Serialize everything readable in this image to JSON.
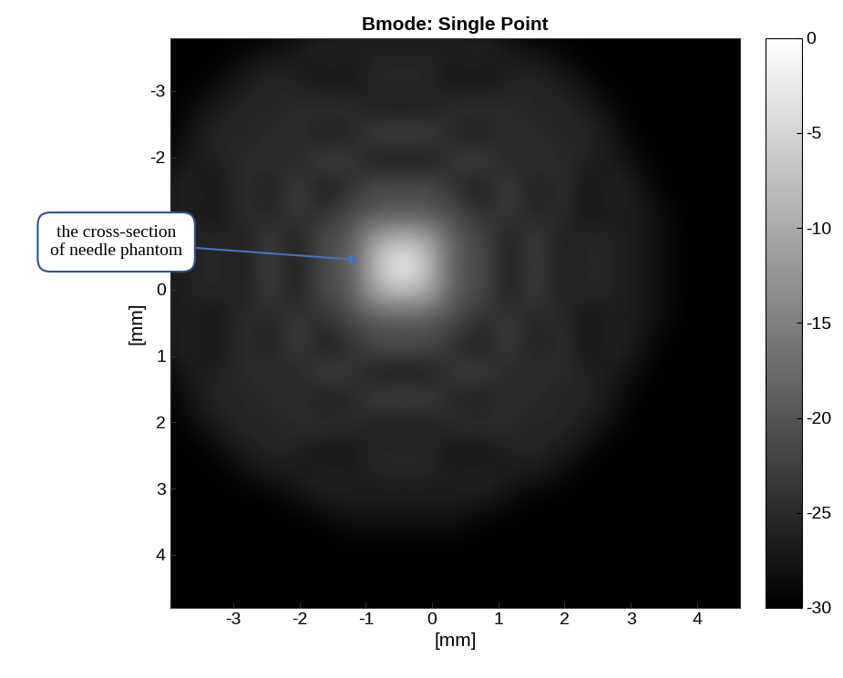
{
  "chart_data": {
    "type": "heatmap",
    "title": "Bmode: Single Point",
    "x_label": "[mm]",
    "y_label": "[mm]",
    "annotation": "the cross-section\nof needle phantom",
    "color": "gray",
    "xlim": [
      -3.95,
      4.65
    ],
    "ylim": [
      4.8,
      -3.8
    ],
    "xticks": [
      -3,
      -2,
      -1,
      0,
      1,
      2,
      3,
      4
    ],
    "yticks": [
      -3,
      -2,
      0,
      1,
      2,
      3,
      4
    ],
    "cells_x_range": [
      -4.25,
      4.95
    ],
    "cells_y_range": [
      -4.15,
      5.05
    ],
    "color_range": [
      -30,
      0
    ],
    "color_ticks": [
      0,
      -5,
      -10,
      -15,
      -20,
      -25,
      -30
    ],
    "cells": [
      [
        -30,
        -30,
        -30,
        -30,
        -30,
        -29,
        -28,
        -27,
        -27,
        -27,
        -27,
        -27,
        -28,
        -29,
        -30,
        -30,
        -30,
        -30,
        -30,
        -30,
        -30,
        -30,
        -30
      ],
      [
        -30,
        -30,
        -30,
        -29,
        -28,
        -27,
        -25,
        -26,
        -26,
        -26,
        -26,
        -26,
        -25,
        -27,
        -28,
        -29,
        -30,
        -30,
        -30,
        -30,
        -30,
        -30,
        -30
      ],
      [
        -30,
        -30,
        -29,
        -27,
        -25,
        -26,
        -28,
        -28,
        -25,
        -25,
        -25,
        -28,
        -28,
        -26,
        -25,
        -27,
        -29,
        -30,
        -30,
        -30,
        -30,
        -30,
        -30
      ],
      [
        -30,
        -29,
        -27,
        -25,
        -26,
        -25,
        -24,
        -24,
        -27,
        -27,
        -27,
        -24,
        -24,
        -25,
        -26,
        -25,
        -27,
        -29,
        -30,
        -30,
        -30,
        -30,
        -30
      ],
      [
        -30,
        -28,
        -25,
        -26,
        -25,
        -24,
        -27,
        -26,
        -22,
        -22,
        -22,
        -26,
        -27,
        -24,
        -25,
        -26,
        -25,
        -28,
        -30,
        -30,
        -30,
        -30,
        -30
      ],
      [
        -29,
        -27,
        -26,
        -25,
        -24,
        -26,
        -22,
        -23,
        -27,
        -27,
        -27,
        -23,
        -22,
        -26,
        -24,
        -25,
        -26,
        -27,
        -29,
        -30,
        -30,
        -30,
        -30
      ],
      [
        -28,
        -25,
        -28,
        -24,
        -27,
        -22,
        -27,
        -25,
        -21,
        -21,
        -21,
        -25,
        -27,
        -22,
        -27,
        -24,
        -28,
        -25,
        -28,
        -30,
        -30,
        -30,
        -30
      ],
      [
        -27,
        -26,
        -28,
        -24,
        -26,
        -23,
        -25,
        -21,
        -20,
        -20,
        -20,
        -21,
        -25,
        -23,
        -26,
        -24,
        -28,
        -26,
        -27,
        -29,
        -30,
        -30,
        -30
      ],
      [
        -27,
        -26,
        -25,
        -27,
        -22,
        -27,
        -21,
        -20,
        -10,
        -8,
        -10,
        -20,
        -21,
        -27,
        -22,
        -27,
        -25,
        -26,
        -27,
        -29,
        -30,
        -30,
        -30
      ],
      [
        -27,
        -26,
        -25,
        -27,
        -22,
        -27,
        -21,
        -20,
        -8,
        0,
        -8,
        -20,
        -21,
        -27,
        -22,
        -27,
        -25,
        -26,
        -27,
        -29,
        -30,
        -30,
        -30
      ],
      [
        -27,
        -26,
        -25,
        -27,
        -22,
        -27,
        -21,
        -20,
        -10,
        -8,
        -10,
        -20,
        -21,
        -27,
        -22,
        -27,
        -25,
        -26,
        -27,
        -29,
        -30,
        -30,
        -30
      ],
      [
        -27,
        -26,
        -28,
        -24,
        -26,
        -23,
        -25,
        -21,
        -20,
        -20,
        -20,
        -21,
        -25,
        -23,
        -26,
        -24,
        -28,
        -26,
        -27,
        -29,
        -30,
        -30,
        -30
      ],
      [
        -28,
        -25,
        -28,
        -24,
        -27,
        -22,
        -27,
        -25,
        -21,
        -21,
        -21,
        -25,
        -27,
        -22,
        -27,
        -24,
        -28,
        -25,
        -28,
        -30,
        -30,
        -30,
        -30
      ],
      [
        -29,
        -27,
        -26,
        -25,
        -24,
        -26,
        -22,
        -23,
        -27,
        -27,
        -27,
        -23,
        -22,
        -26,
        -24,
        -25,
        -26,
        -27,
        -29,
        -30,
        -30,
        -30,
        -30
      ],
      [
        -30,
        -28,
        -25,
        -26,
        -25,
        -24,
        -27,
        -26,
        -22,
        -22,
        -22,
        -26,
        -27,
        -24,
        -25,
        -26,
        -25,
        -28,
        -30,
        -30,
        -30,
        -30,
        -30
      ],
      [
        -30,
        -29,
        -27,
        -25,
        -26,
        -25,
        -24,
        -24,
        -27,
        -27,
        -27,
        -24,
        -24,
        -25,
        -26,
        -25,
        -27,
        -29,
        -30,
        -30,
        -30,
        -30,
        -30
      ],
      [
        -30,
        -30,
        -29,
        -27,
        -25,
        -26,
        -28,
        -28,
        -25,
        -25,
        -25,
        -28,
        -28,
        -26,
        -25,
        -27,
        -29,
        -30,
        -30,
        -30,
        -30,
        -30,
        -30
      ],
      [
        -30,
        -30,
        -30,
        -29,
        -28,
        -27,
        -25,
        -26,
        -26,
        -26,
        -26,
        -26,
        -25,
        -27,
        -28,
        -29,
        -30,
        -30,
        -30,
        -30,
        -30,
        -30,
        -30
      ],
      [
        -30,
        -30,
        -30,
        -30,
        -30,
        -29,
        -28,
        -27,
        -27,
        -27,
        -27,
        -27,
        -28,
        -29,
        -30,
        -30,
        -30,
        -30,
        -30,
        -30,
        -30,
        -30,
        -30
      ],
      [
        -30,
        -30,
        -30,
        -30,
        -30,
        -30,
        -30,
        -29,
        -29,
        -29,
        -29,
        -29,
        -30,
        -30,
        -30,
        -30,
        -30,
        -30,
        -30,
        -30,
        -30,
        -30,
        -30
      ],
      [
        -30,
        -30,
        -30,
        -30,
        -30,
        -30,
        -30,
        -30,
        -30,
        -30,
        -30,
        -30,
        -30,
        -30,
        -30,
        -30,
        -30,
        -30,
        -30,
        -30,
        -30,
        -30,
        -30
      ],
      [
        -30,
        -30,
        -30,
        -30,
        -30,
        -30,
        -30,
        -30,
        -30,
        -30,
        -30,
        -30,
        -30,
        -30,
        -30,
        -30,
        -30,
        -30,
        -30,
        -30,
        -30,
        -30,
        -30
      ],
      [
        -30,
        -30,
        -30,
        -30,
        -30,
        -30,
        -30,
        -30,
        -30,
        -30,
        -30,
        -30,
        -30,
        -30,
        -30,
        -30,
        -30,
        -30,
        -30,
        -30,
        -30,
        -30,
        -30
      ]
    ]
  }
}
